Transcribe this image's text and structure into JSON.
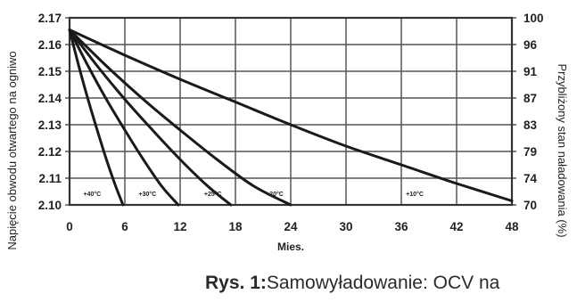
{
  "chart_data": {
    "type": "line",
    "xlabel": "Mies.",
    "ylabel": "Napięcie obwodu otwartego na ogniwo",
    "y2label": "Przybliżony stan naładowania (%)",
    "xlim": [
      0,
      48
    ],
    "ylim": [
      2.1,
      2.17
    ],
    "x_ticks": [
      "0",
      "6",
      "12",
      "18",
      "24",
      "30",
      "36",
      "42",
      "48"
    ],
    "y_ticks": [
      "2.10",
      "2.11",
      "2.12",
      "2.13",
      "2.14",
      "2.15",
      "2.16",
      "2.17"
    ],
    "y2_ticks": [
      "70",
      "74",
      "79",
      "83",
      "87",
      "91",
      "96",
      "100"
    ],
    "grid": true,
    "line_color": "#1a1a1a",
    "series": [
      {
        "name": "+40°C",
        "x": [
          0,
          1,
          2,
          3,
          4,
          5,
          5.8
        ],
        "y": [
          2.1655,
          2.152,
          2.1395,
          2.128,
          2.117,
          2.107,
          2.1
        ]
      },
      {
        "name": "+30°C",
        "x": [
          0,
          2,
          4,
          6,
          8,
          10,
          11.8
        ],
        "y": [
          2.1655,
          2.152,
          2.1395,
          2.128,
          2.117,
          2.107,
          2.1
        ]
      },
      {
        "name": "+25°C",
        "x": [
          0,
          3,
          6,
          9,
          12,
          15,
          17.5
        ],
        "y": [
          2.1655,
          2.152,
          2.1395,
          2.128,
          2.117,
          2.107,
          2.1
        ]
      },
      {
        "name": "+20°C",
        "x": [
          0,
          4,
          8,
          12,
          16,
          20,
          24
        ],
        "y": [
          2.1655,
          2.152,
          2.1395,
          2.128,
          2.117,
          2.107,
          2.1
        ]
      },
      {
        "name": "+10°C",
        "x": [
          0,
          6,
          12,
          18,
          24,
          30,
          36,
          42,
          48
        ],
        "y": [
          2.1655,
          2.156,
          2.147,
          2.1385,
          2.13,
          2.122,
          2.115,
          2.108,
          2.1015
        ]
      }
    ],
    "curve_labels": [
      {
        "text": "+40°C",
        "x": 1.5,
        "y": 2.1033
      },
      {
        "text": "+30°C",
        "x": 7.5,
        "y": 2.1033
      },
      {
        "text": "+25°C",
        "x": 14.6,
        "y": 2.1033
      },
      {
        "text": "+20°C",
        "x": 21.3,
        "y": 2.1033
      },
      {
        "text": "+10°C",
        "x": 36.5,
        "y": 2.1033
      }
    ]
  },
  "caption": {
    "bold": "Rys. 1:",
    "text": "Samowyładowanie: OCV na"
  }
}
